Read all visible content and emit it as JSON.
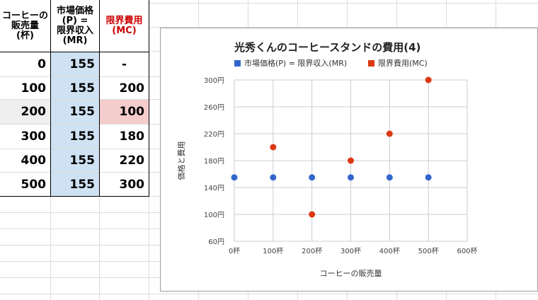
{
  "table": {
    "headers": [
      {
        "text": "コーヒーの\n販売量\n(杯)",
        "color": "#000000"
      },
      {
        "text": "市場価格\n(P) =\n限界収入\n(MR)",
        "color": "#000000"
      },
      {
        "text": "限界費用\n(MC)",
        "color": "#cc0000"
      }
    ],
    "rows": [
      {
        "qty": "0",
        "price": "155",
        "mc": "-"
      },
      {
        "qty": "100",
        "price": "155",
        "mc": "200"
      },
      {
        "qty": "200",
        "price": "155",
        "mc": "100"
      },
      {
        "qty": "300",
        "price": "155",
        "mc": "180"
      },
      {
        "qty": "400",
        "price": "155",
        "mc": "220"
      },
      {
        "qty": "500",
        "price": "155",
        "mc": "300"
      }
    ]
  },
  "chart_data": {
    "type": "scatter",
    "title": "光秀くんのコーヒースタンドの費用(4)",
    "xlabel": "コーヒーの販売量",
    "ylabel": "価格と費用",
    "xlim": [
      0,
      600
    ],
    "ylim": [
      60,
      300
    ],
    "x_ticks": [
      "0杯",
      "100杯",
      "200杯",
      "300杯",
      "400杯",
      "500杯",
      "600杯"
    ],
    "y_ticks": [
      "300円",
      "260円",
      "220円",
      "180円",
      "140円",
      "100円",
      "60円"
    ],
    "grid": true,
    "legend_position": "top",
    "series": [
      {
        "name": "市場価格(P) = 限界収入(MR)",
        "color": "#3366cc",
        "points": [
          [
            0,
            155
          ],
          [
            100,
            155
          ],
          [
            200,
            155
          ],
          [
            300,
            155
          ],
          [
            400,
            155
          ],
          [
            500,
            155
          ]
        ]
      },
      {
        "name": "限界費用(MC)",
        "color": "#dc3912",
        "points": [
          [
            100,
            200
          ],
          [
            200,
            100
          ],
          [
            300,
            180
          ],
          [
            400,
            220
          ],
          [
            500,
            300
          ]
        ]
      }
    ]
  }
}
